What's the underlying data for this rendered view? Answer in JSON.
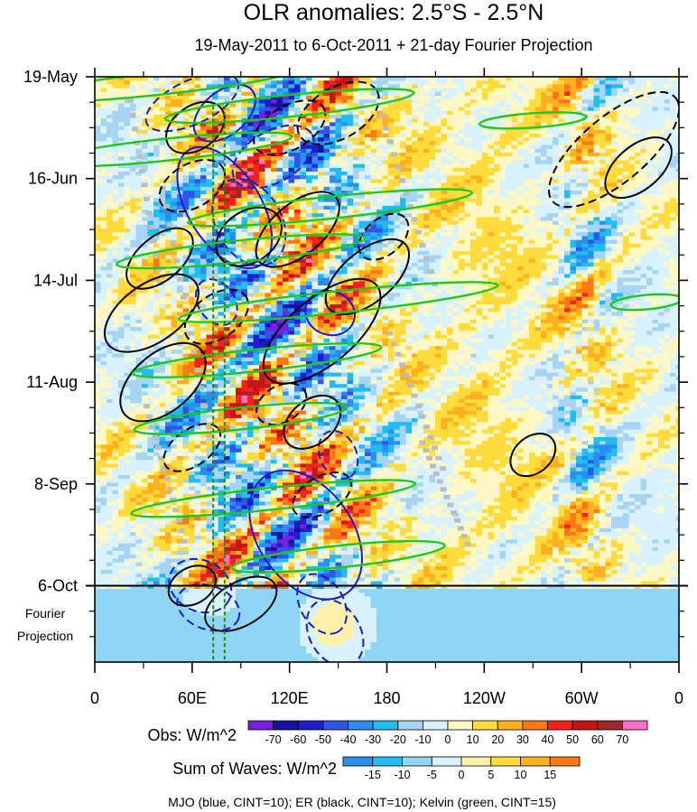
{
  "chart_data": {
    "type": "heatmap",
    "title": "OLR anomalies: 2.5°S - 2.5°N",
    "subtitle": "19-May-2011 to 6-Oct-2011 + 21-day Fourier Projection",
    "x_ticks": [
      "0",
      "60E",
      "120E",
      "180",
      "120W",
      "60W",
      "0"
    ],
    "x_tick_lon": [
      0,
      60,
      120,
      180,
      240,
      300,
      360
    ],
    "xlim": [
      0,
      360
    ],
    "y_ticks": [
      "19-May",
      "16-Jun",
      "14-Jul",
      "11-Aug",
      "8-Sep",
      "6-Oct"
    ],
    "y_tick_day": [
      0,
      28,
      56,
      84,
      112,
      140
    ],
    "ylim_days": [
      0,
      161
    ],
    "projection_label": [
      "Fourier",
      "Projection"
    ],
    "projection_start_day": 140,
    "obs_colorbar": {
      "label": "Obs: W/m^2",
      "levels": [
        "-70",
        "-60",
        "-50",
        "-40",
        "-30",
        "-20",
        "-10",
        "0",
        "10",
        "20",
        "30",
        "40",
        "50",
        "60",
        "70"
      ],
      "colors": [
        "#7a1fe0",
        "#1414a0",
        "#1e1ecf",
        "#2f55e6",
        "#2c8df0",
        "#1fbdf0",
        "#a6d4f2",
        "#d9f2ff",
        "#fff7c4",
        "#ffdc3c",
        "#ffb01e",
        "#ff7814",
        "#ff1e1e",
        "#c81414",
        "#a02828",
        "#ff6ec8"
      ]
    },
    "wave_colorbar": {
      "label": "Sum of Waves: W/m^2",
      "levels": [
        "-15",
        "-10",
        "-5",
        "0",
        "5",
        "10",
        "15"
      ],
      "colors": [
        "#2c8df0",
        "#1fbdf0",
        "#8fd6f6",
        "#d9f2ff",
        "#fff2a8",
        "#ffdc3c",
        "#ffb01e",
        "#ff7814"
      ]
    },
    "contours": [
      {
        "name": "MJO",
        "color": "#1a1ad0",
        "cint": 10
      },
      {
        "name": "ER",
        "color": "#000000",
        "cint": 10
      },
      {
        "name": "Kelvin",
        "color": "#1ec81e",
        "cint": 15
      }
    ],
    "footnote": "MJO (blue, CINT=10); ER (black, CINT=10); Kelvin (green, CINT=15)",
    "guide_lines_lon": [
      73,
      80
    ],
    "ellipses": [
      {
        "t": "mjo",
        "lon": 60,
        "day": 7,
        "r1": 28,
        "r2": 6,
        "a": -25,
        "s": "d"
      },
      {
        "t": "mjo",
        "lon": 80,
        "day": 10,
        "r1": 20,
        "r2": 6,
        "a": -40,
        "s": "s"
      },
      {
        "t": "mjo",
        "lon": 110,
        "day": 22,
        "r1": 25,
        "r2": 7,
        "a": -30,
        "s": "d"
      },
      {
        "t": "mjo",
        "lon": 80,
        "day": 36,
        "r1": 38,
        "r2": 10,
        "a": 58,
        "s": "s"
      },
      {
        "t": "mjo",
        "lon": 95,
        "day": 40,
        "r1": 26,
        "r2": 9,
        "a": 60,
        "s": "d"
      },
      {
        "t": "mjo",
        "lon": 75,
        "day": 62,
        "r1": 14,
        "r2": 5,
        "a": 55,
        "s": "d"
      },
      {
        "t": "mjo",
        "lon": 145,
        "day": 65,
        "r1": 14,
        "r2": 6,
        "a": 20,
        "s": "s"
      },
      {
        "t": "mjo",
        "lon": 150,
        "day": 104,
        "r1": 14,
        "r2": 5,
        "a": 65,
        "s": "d"
      },
      {
        "t": "mjo",
        "lon": 130,
        "day": 126,
        "r1": 40,
        "r2": 13,
        "a": 55,
        "s": "s"
      },
      {
        "t": "mjo",
        "lon": 65,
        "day": 140,
        "r1": 18,
        "r2": 7,
        "a": 25,
        "s": "d"
      },
      {
        "t": "mjo",
        "lon": 70,
        "day": 146,
        "r1": 18,
        "r2": 6,
        "a": 20,
        "s": "d"
      },
      {
        "t": "mjo",
        "lon": 140,
        "day": 145,
        "r1": 18,
        "r2": 6,
        "a": 60,
        "s": "d"
      },
      {
        "t": "mjo",
        "lon": 148,
        "day": 153,
        "r1": 20,
        "r2": 7,
        "a": 60,
        "s": "d"
      },
      {
        "t": "er",
        "lon": 62,
        "day": 14,
        "r1": 18,
        "r2": 6,
        "a": -35,
        "s": "s"
      },
      {
        "t": "er",
        "lon": 120,
        "day": 14,
        "r1": 22,
        "r2": 6,
        "a": -30,
        "s": "d"
      },
      {
        "t": "er",
        "lon": 150,
        "day": 10,
        "r1": 25,
        "r2": 7,
        "a": -30,
        "s": "d"
      },
      {
        "t": "er",
        "lon": 60,
        "day": 30,
        "r1": 20,
        "r2": 6,
        "a": -30,
        "s": "d"
      },
      {
        "t": "er",
        "lon": 95,
        "day": 44,
        "r1": 20,
        "r2": 7,
        "a": -35,
        "s": "s"
      },
      {
        "t": "er",
        "lon": 125,
        "day": 42,
        "r1": 28,
        "r2": 7,
        "a": -40,
        "s": "s"
      },
      {
        "t": "er",
        "lon": 178,
        "day": 44,
        "r1": 16,
        "r2": 5,
        "a": -40,
        "s": "d"
      },
      {
        "t": "er",
        "lon": 40,
        "day": 50,
        "r1": 22,
        "r2": 6,
        "a": -40,
        "s": "s"
      },
      {
        "t": "er",
        "lon": 168,
        "day": 55,
        "r1": 28,
        "r2": 7,
        "a": -40,
        "s": "s"
      },
      {
        "t": "er",
        "lon": 35,
        "day": 65,
        "r1": 30,
        "r2": 8,
        "a": -35,
        "s": "s"
      },
      {
        "t": "er",
        "lon": 75,
        "day": 66,
        "r1": 20,
        "r2": 6,
        "a": -35,
        "s": "d"
      },
      {
        "t": "er",
        "lon": 140,
        "day": 70,
        "r1": 40,
        "r2": 9,
        "a": -40,
        "s": "s"
      },
      {
        "t": "er",
        "lon": 42,
        "day": 84,
        "r1": 28,
        "r2": 8,
        "a": -40,
        "s": "s"
      },
      {
        "t": "er",
        "lon": 115,
        "day": 90,
        "r1": 15,
        "r2": 5,
        "a": -30,
        "s": "d"
      },
      {
        "t": "er",
        "lon": 134,
        "day": 95,
        "r1": 18,
        "r2": 6,
        "a": -40,
        "s": "s"
      },
      {
        "t": "er",
        "lon": 60,
        "day": 102,
        "r1": 18,
        "r2": 5,
        "a": -35,
        "s": "d"
      },
      {
        "t": "er",
        "lon": 140,
        "day": 115,
        "r1": 18,
        "r2": 5,
        "a": -30,
        "s": "d"
      },
      {
        "t": "er",
        "lon": 270,
        "day": 104,
        "r1": 14,
        "r2": 5,
        "a": -40,
        "s": "s"
      },
      {
        "t": "er",
        "lon": 320,
        "day": 20,
        "r1": 45,
        "r2": 9,
        "a": -40,
        "s": "d"
      },
      {
        "t": "er",
        "lon": 335,
        "day": 25,
        "r1": 22,
        "r2": 6,
        "a": -40,
        "s": "s"
      },
      {
        "t": "er",
        "lon": 90,
        "day": 145,
        "r1": 22,
        "r2": 6,
        "a": -30,
        "s": "s"
      },
      {
        "t": "er",
        "lon": 60,
        "day": 140,
        "r1": 14,
        "r2": 5,
        "a": -30,
        "s": "s"
      },
      {
        "t": "kel",
        "lon": 38,
        "day": 2,
        "r1": 80,
        "r2": 3,
        "a": -6,
        "s": "s"
      },
      {
        "t": "kel",
        "lon": 120,
        "day": 8,
        "r1": 70,
        "r2": 3,
        "a": -6,
        "s": "s"
      },
      {
        "t": "kel",
        "lon": 45,
        "day": 20,
        "r1": 70,
        "r2": 3,
        "a": -6,
        "s": "s"
      },
      {
        "t": "kel",
        "lon": 145,
        "day": 36,
        "r1": 80,
        "r2": 3,
        "a": -6,
        "s": "s"
      },
      {
        "t": "kel",
        "lon": 90,
        "day": 48,
        "r1": 70,
        "r2": 3,
        "a": -6,
        "s": "s"
      },
      {
        "t": "kel",
        "lon": 150,
        "day": 62,
        "r1": 90,
        "r2": 3,
        "a": -6,
        "s": "s"
      },
      {
        "t": "kel",
        "lon": 100,
        "day": 78,
        "r1": 70,
        "r2": 3,
        "a": -6,
        "s": "s"
      },
      {
        "t": "kel",
        "lon": 90,
        "day": 94,
        "r1": 60,
        "r2": 3,
        "a": -6,
        "s": "s"
      },
      {
        "t": "kel",
        "lon": 110,
        "day": 116,
        "r1": 80,
        "r2": 3,
        "a": -6,
        "s": "s"
      },
      {
        "t": "kel",
        "lon": 150,
        "day": 132,
        "r1": 60,
        "r2": 3,
        "a": -6,
        "s": "s"
      },
      {
        "t": "kel",
        "lon": 270,
        "day": 12,
        "r1": 30,
        "r2": 2,
        "a": -4,
        "s": "s"
      },
      {
        "t": "kel",
        "lon": 340,
        "day": 62,
        "r1": 20,
        "r2": 2,
        "a": -5,
        "s": "s"
      }
    ]
  }
}
